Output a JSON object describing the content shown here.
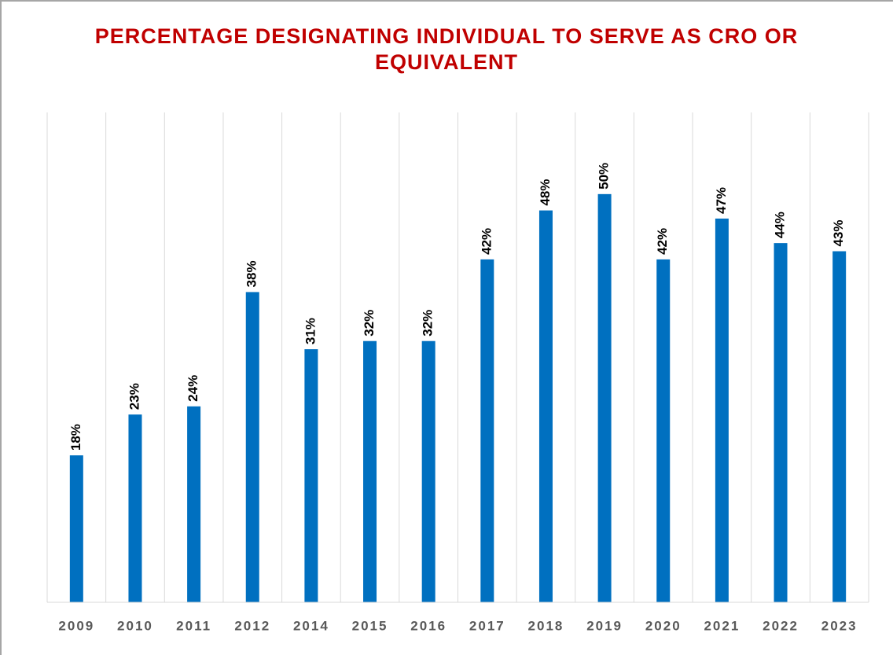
{
  "chart_data": {
    "type": "bar",
    "title": "PERCENTAGE DESIGNATING INDIVIDUAL TO SERVE AS CRO OR EQUIVALENT",
    "categories": [
      "2009",
      "2010",
      "2011",
      "2012",
      "2014",
      "2015",
      "2016",
      "2017",
      "2018",
      "2019",
      "2020",
      "2021",
      "2022",
      "2023"
    ],
    "values": [
      18,
      23,
      24,
      38,
      31,
      32,
      32,
      42,
      48,
      50,
      42,
      47,
      44,
      43
    ],
    "value_labels": [
      "18%",
      "23%",
      "24%",
      "38%",
      "31%",
      "32%",
      "32%",
      "42%",
      "48%",
      "50%",
      "42%",
      "47%",
      "44%",
      "43%"
    ],
    "color": "#0070c0",
    "ylim": [
      0,
      60
    ]
  }
}
